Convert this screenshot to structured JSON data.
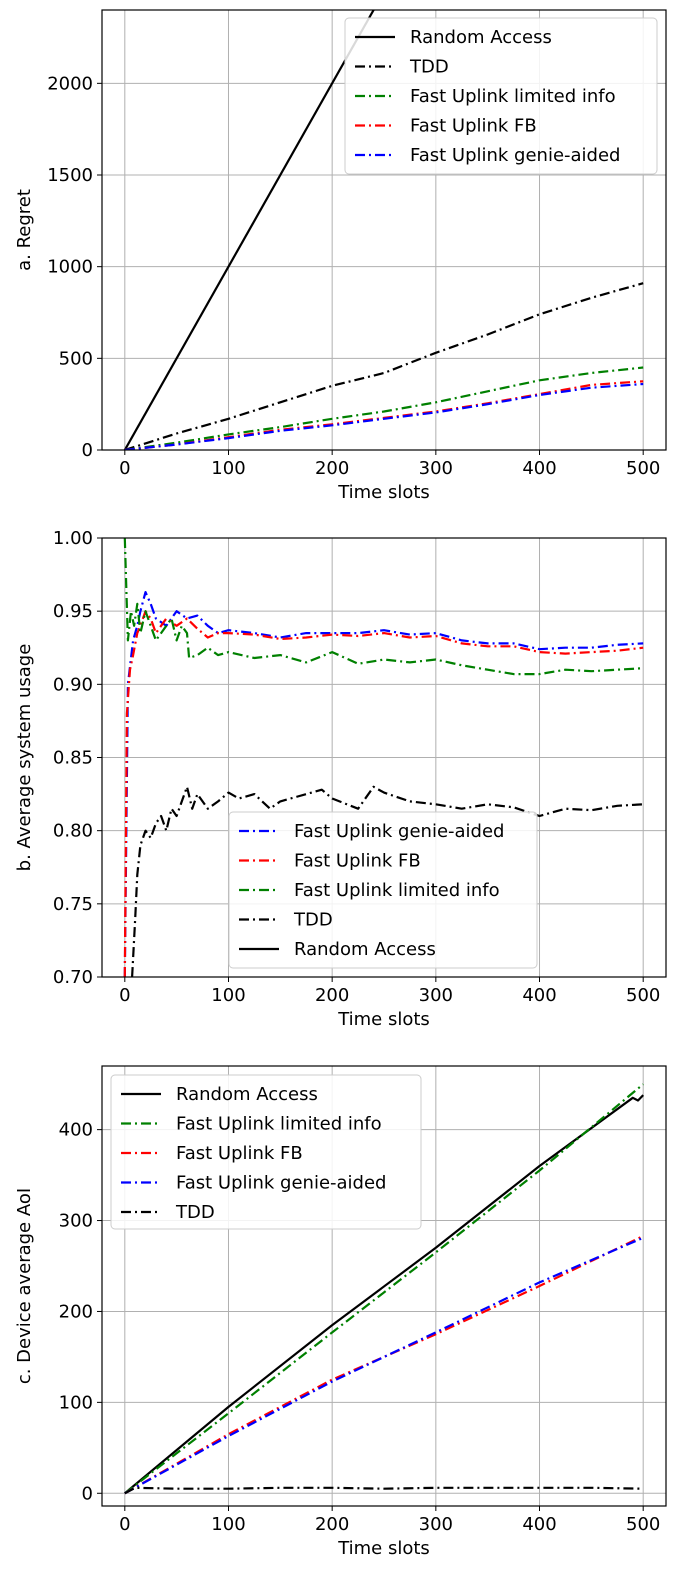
{
  "chart_data": [
    {
      "type": "line",
      "ylabel": "a. Regret",
      "xlabel": "Time slots",
      "xlim": [
        -22,
        522
      ],
      "ylim": [
        0,
        2400
      ],
      "xticks": [
        0,
        100,
        200,
        300,
        400,
        500
      ],
      "yticks": [
        0,
        500,
        1000,
        1500,
        2000
      ],
      "grid": true,
      "legend_position": "top-right",
      "legend": [
        {
          "label": "Random Access",
          "color": "#000000",
          "style": "solid"
        },
        {
          "label": "TDD",
          "color": "#000000",
          "style": "dashdot"
        },
        {
          "label": "Fast Uplink limited info",
          "color": "#008000",
          "style": "dashdot"
        },
        {
          "label": "Fast Uplink FB",
          "color": "#ff0000",
          "style": "dashdot"
        },
        {
          "label": "Fast Uplink genie-aided",
          "color": "#0000ff",
          "style": "dashdot"
        }
      ],
      "series": [
        {
          "name": "Random Access",
          "color": "#000000",
          "style": "solid",
          "x": [
            0,
            240
          ],
          "y": [
            0,
            2400
          ]
        },
        {
          "name": "TDD",
          "color": "#000000",
          "style": "dashdot",
          "x": [
            0,
            50,
            100,
            150,
            200,
            250,
            300,
            350,
            400,
            450,
            500
          ],
          "y": [
            0,
            90,
            170,
            260,
            350,
            420,
            530,
            630,
            740,
            830,
            910
          ]
        },
        {
          "name": "Fast Uplink limited info",
          "color": "#008000",
          "style": "dashdot",
          "x": [
            0,
            50,
            100,
            150,
            200,
            250,
            300,
            350,
            400,
            450,
            500
          ],
          "y": [
            0,
            40,
            85,
            125,
            170,
            210,
            260,
            320,
            380,
            420,
            450
          ]
        },
        {
          "name": "Fast Uplink FB",
          "color": "#ff0000",
          "style": "dashdot",
          "x": [
            0,
            50,
            100,
            150,
            200,
            250,
            300,
            350,
            400,
            450,
            500
          ],
          "y": [
            0,
            30,
            70,
            110,
            140,
            175,
            210,
            255,
            305,
            355,
            375
          ]
        },
        {
          "name": "Fast Uplink genie-aided",
          "color": "#0000ff",
          "style": "dashdot",
          "x": [
            0,
            50,
            100,
            150,
            200,
            250,
            300,
            350,
            400,
            450,
            500
          ],
          "y": [
            0,
            30,
            65,
            105,
            135,
            170,
            205,
            250,
            300,
            340,
            360
          ]
        }
      ]
    },
    {
      "type": "line",
      "ylabel": "b. Average system usage",
      "xlabel": "Time slots",
      "xlim": [
        -22,
        522
      ],
      "ylim": [
        0.7,
        1.0
      ],
      "xticks": [
        0,
        100,
        200,
        300,
        400,
        500
      ],
      "yticks": [
        0.7,
        0.75,
        0.8,
        0.85,
        0.9,
        0.95,
        1.0
      ],
      "ytick_labels": [
        "0.70",
        "0.75",
        "0.80",
        "0.85",
        "0.90",
        "0.95",
        "1.00"
      ],
      "grid": true,
      "legend_position": "lower-center",
      "legend": [
        {
          "label": "Fast Uplink genie-aided",
          "color": "#0000ff",
          "style": "dashdot"
        },
        {
          "label": "Fast Uplink FB",
          "color": "#ff0000",
          "style": "dashdot"
        },
        {
          "label": "Fast Uplink limited info",
          "color": "#008000",
          "style": "dashdot"
        },
        {
          "label": "TDD",
          "color": "#000000",
          "style": "dashdot"
        },
        {
          "label": "Random Access",
          "color": "#000000",
          "style": "solid"
        }
      ],
      "series": [
        {
          "name": "Fast Uplink genie-aided",
          "color": "#0000ff",
          "style": "dashdot",
          "x": [
            0,
            3,
            8,
            12,
            15,
            20,
            25,
            30,
            40,
            50,
            60,
            70,
            80,
            90,
            100,
            125,
            150,
            175,
            200,
            225,
            250,
            275,
            300,
            325,
            350,
            375,
            400,
            425,
            450,
            475,
            500
          ],
          "y": [
            0.7,
            0.9,
            0.93,
            0.94,
            0.95,
            0.963,
            0.955,
            0.945,
            0.94,
            0.95,
            0.945,
            0.947,
            0.94,
            0.935,
            0.937,
            0.935,
            0.932,
            0.935,
            0.935,
            0.935,
            0.937,
            0.934,
            0.935,
            0.93,
            0.928,
            0.928,
            0.924,
            0.925,
            0.925,
            0.927,
            0.928
          ]
        },
        {
          "name": "Fast Uplink FB",
          "color": "#ff0000",
          "style": "dashdot",
          "x": [
            0,
            2,
            5,
            8,
            12,
            15,
            20,
            25,
            30,
            40,
            50,
            60,
            70,
            80,
            90,
            100,
            125,
            150,
            175,
            200,
            225,
            250,
            275,
            300,
            325,
            350,
            375,
            400,
            425,
            450,
            475,
            500
          ],
          "y": [
            0.7,
            0.88,
            0.91,
            0.92,
            0.935,
            0.94,
            0.95,
            0.945,
            0.935,
            0.945,
            0.94,
            0.945,
            0.938,
            0.932,
            0.935,
            0.935,
            0.934,
            0.931,
            0.932,
            0.934,
            0.933,
            0.935,
            0.932,
            0.933,
            0.928,
            0.926,
            0.926,
            0.922,
            0.921,
            0.922,
            0.923,
            0.925
          ]
        },
        {
          "name": "Fast Uplink limited info",
          "color": "#008000",
          "style": "dashdot",
          "x": [
            0,
            3,
            6,
            9,
            12,
            15,
            20,
            25,
            30,
            35,
            40,
            45,
            50,
            55,
            60,
            62,
            70,
            80,
            90,
            100,
            125,
            150,
            175,
            200,
            225,
            250,
            275,
            300,
            325,
            350,
            375,
            400,
            425,
            450,
            475,
            500
          ],
          "y": [
            1.0,
            0.93,
            0.95,
            0.94,
            0.955,
            0.935,
            0.95,
            0.94,
            0.93,
            0.935,
            0.94,
            0.945,
            0.93,
            0.94,
            0.935,
            0.918,
            0.92,
            0.925,
            0.92,
            0.922,
            0.918,
            0.92,
            0.915,
            0.922,
            0.914,
            0.917,
            0.915,
            0.917,
            0.913,
            0.91,
            0.907,
            0.907,
            0.91,
            0.909,
            0.91,
            0.911
          ]
        },
        {
          "name": "TDD",
          "color": "#000000",
          "style": "dashdot",
          "x": [
            7,
            10,
            12,
            15,
            20,
            25,
            30,
            35,
            40,
            45,
            50,
            55,
            60,
            65,
            70,
            80,
            90,
            100,
            110,
            125,
            140,
            150,
            175,
            190,
            200,
            225,
            240,
            250,
            275,
            300,
            325,
            350,
            375,
            400,
            425,
            450,
            475,
            500
          ],
          "y": [
            0.7,
            0.74,
            0.77,
            0.79,
            0.8,
            0.795,
            0.805,
            0.81,
            0.8,
            0.815,
            0.81,
            0.82,
            0.83,
            0.815,
            0.825,
            0.815,
            0.82,
            0.826,
            0.822,
            0.825,
            0.815,
            0.82,
            0.825,
            0.828,
            0.822,
            0.815,
            0.83,
            0.826,
            0.82,
            0.818,
            0.815,
            0.818,
            0.816,
            0.81,
            0.815,
            0.814,
            0.817,
            0.818
          ]
        }
      ]
    },
    {
      "type": "line",
      "ylabel": "c. Device average AoI",
      "xlabel": "Time slots",
      "xlim": [
        -22,
        522
      ],
      "ylim": [
        -14,
        470
      ],
      "xticks": [
        0,
        100,
        200,
        300,
        400,
        500
      ],
      "yticks": [
        0,
        100,
        200,
        300,
        400
      ],
      "grid": true,
      "legend_position": "top-left",
      "legend": [
        {
          "label": "Random Access",
          "color": "#000000",
          "style": "solid"
        },
        {
          "label": "Fast Uplink limited info",
          "color": "#008000",
          "style": "dashdot"
        },
        {
          "label": "Fast Uplink FB",
          "color": "#ff0000",
          "style": "dashdot"
        },
        {
          "label": "Fast Uplink genie-aided",
          "color": "#0000ff",
          "style": "dashdot"
        },
        {
          "label": "TDD",
          "color": "#000000",
          "style": "dashdot"
        }
      ],
      "series": [
        {
          "name": "Random Access",
          "color": "#000000",
          "style": "solid",
          "x": [
            0,
            100,
            200,
            300,
            400,
            490,
            495,
            500
          ],
          "y": [
            0,
            95,
            185,
            270,
            360,
            435,
            432,
            438
          ]
        },
        {
          "name": "Fast Uplink limited info",
          "color": "#008000",
          "style": "dashdot",
          "x": [
            0,
            100,
            200,
            300,
            400,
            500
          ],
          "y": [
            0,
            88,
            177,
            265,
            355,
            450
          ]
        },
        {
          "name": "Fast Uplink FB",
          "color": "#ff0000",
          "style": "dashdot",
          "x": [
            0,
            100,
            200,
            300,
            400,
            500
          ],
          "y": [
            0,
            65,
            125,
            175,
            228,
            283
          ]
        },
        {
          "name": "Fast Uplink genie-aided",
          "color": "#0000ff",
          "style": "dashdot",
          "x": [
            0,
            100,
            200,
            300,
            400,
            500
          ],
          "y": [
            0,
            63,
            123,
            177,
            232,
            281
          ]
        },
        {
          "name": "TDD",
          "color": "#000000",
          "style": "dashdot",
          "x": [
            0,
            10,
            50,
            100,
            150,
            200,
            250,
            300,
            350,
            400,
            450,
            500
          ],
          "y": [
            0,
            6,
            5,
            5,
            6,
            6,
            5,
            6,
            6,
            6,
            6,
            5
          ]
        }
      ]
    }
  ]
}
